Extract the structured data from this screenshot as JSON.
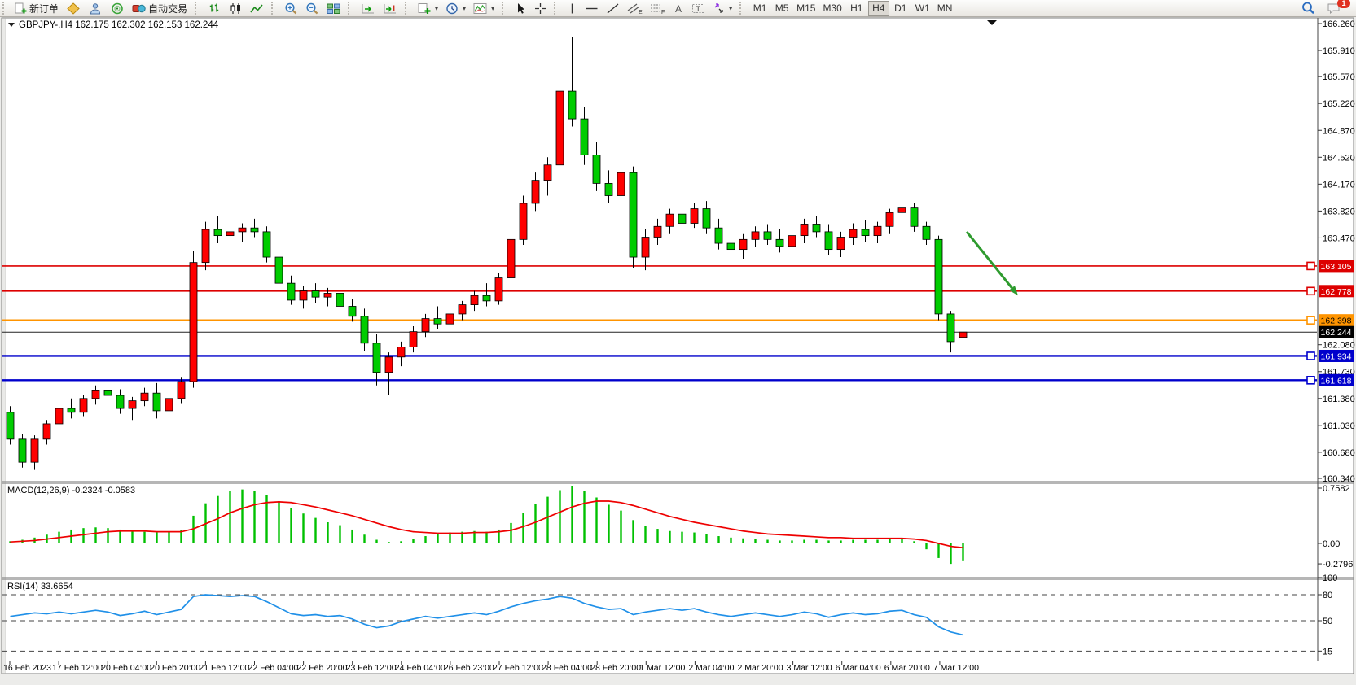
{
  "toolbar": {
    "new_order_label": "新订单",
    "autotrading_label": "自动交易",
    "timeframes": [
      "M1",
      "M5",
      "M15",
      "M30",
      "H1",
      "H4",
      "D1",
      "W1",
      "MN"
    ],
    "active_timeframe": "H4",
    "notification_count": "1"
  },
  "chart_data": {
    "type": "candlestick",
    "symbol": "GBPJPY-",
    "timeframe": "H4",
    "title": "GBPJPY-,H4",
    "ohlc_label": "162.175 162.302 162.153 162.244",
    "last": {
      "open": 162.175,
      "high": 162.302,
      "low": 162.153,
      "close": 162.244
    },
    "ylim": [
      160.34,
      166.26
    ],
    "y_ticks": [
      166.26,
      165.91,
      165.57,
      165.22,
      164.87,
      164.52,
      164.17,
      163.82,
      163.47,
      162.08,
      161.73,
      161.38,
      161.03,
      160.68,
      160.34
    ],
    "hlines": [
      {
        "price": 163.105,
        "color": "#dd0000",
        "label_bg": "#dd0000",
        "label_fg": "#ffffff",
        "width": 1.6,
        "marker": true
      },
      {
        "price": 162.778,
        "color": "#dd0000",
        "label_bg": "#dd0000",
        "label_fg": "#ffffff",
        "width": 1.6,
        "marker": true
      },
      {
        "price": 162.398,
        "color": "#ff9400",
        "label_bg": "#ff9400",
        "label_fg": "#000000",
        "width": 2.4,
        "marker": true
      },
      {
        "price": 161.934,
        "color": "#0000cc",
        "label_bg": "#0000cc",
        "label_fg": "#ffffff",
        "width": 2.4,
        "marker": true
      },
      {
        "price": 161.618,
        "color": "#0000cc",
        "label_bg": "#0000cc",
        "label_fg": "#ffffff",
        "width": 2.4,
        "marker": true
      }
    ],
    "current_price": {
      "price": 162.244,
      "color": "#222222",
      "label_bg": "#000000",
      "label_fg": "#ffffff",
      "width": 1,
      "marker": false
    },
    "up_color": "#ff0000",
    "down_color": "#00cc00",
    "candles": [
      [
        161.2,
        161.28,
        160.78,
        160.85
      ],
      [
        160.85,
        160.92,
        160.48,
        160.55
      ],
      [
        160.55,
        160.9,
        160.45,
        160.85
      ],
      [
        160.85,
        161.1,
        160.78,
        161.05
      ],
      [
        161.05,
        161.3,
        160.98,
        161.25
      ],
      [
        161.25,
        161.38,
        161.12,
        161.2
      ],
      [
        161.2,
        161.42,
        161.15,
        161.38
      ],
      [
        161.38,
        161.55,
        161.3,
        161.48
      ],
      [
        161.48,
        161.58,
        161.35,
        161.42
      ],
      [
        161.42,
        161.5,
        161.18,
        161.25
      ],
      [
        161.25,
        161.4,
        161.1,
        161.35
      ],
      [
        161.35,
        161.52,
        161.28,
        161.45
      ],
      [
        161.45,
        161.58,
        161.12,
        161.22
      ],
      [
        161.22,
        161.42,
        161.15,
        161.38
      ],
      [
        161.38,
        161.65,
        161.32,
        161.6
      ],
      [
        161.6,
        163.3,
        161.52,
        163.15
      ],
      [
        163.15,
        163.68,
        163.05,
        163.58
      ],
      [
        163.58,
        163.75,
        163.4,
        163.5
      ],
      [
        163.5,
        163.62,
        163.35,
        163.55
      ],
      [
        163.55,
        163.66,
        163.42,
        163.6
      ],
      [
        163.6,
        163.72,
        163.48,
        163.55
      ],
      [
        163.55,
        163.62,
        163.15,
        163.22
      ],
      [
        163.22,
        163.35,
        162.8,
        162.88
      ],
      [
        162.88,
        162.98,
        162.6,
        162.66
      ],
      [
        162.66,
        162.85,
        162.55,
        162.78
      ],
      [
        162.78,
        162.88,
        162.62,
        162.7
      ],
      [
        162.7,
        162.82,
        162.58,
        162.75
      ],
      [
        162.75,
        162.85,
        162.5,
        162.58
      ],
      [
        162.58,
        162.68,
        162.38,
        162.45
      ],
      [
        162.45,
        162.55,
        162.0,
        162.1
      ],
      [
        162.1,
        162.22,
        161.55,
        161.72
      ],
      [
        161.72,
        161.98,
        161.42,
        161.92
      ],
      [
        161.92,
        162.12,
        161.8,
        162.05
      ],
      [
        162.05,
        162.32,
        161.98,
        162.25
      ],
      [
        162.25,
        162.48,
        162.18,
        162.42
      ],
      [
        162.42,
        162.58,
        162.28,
        162.35
      ],
      [
        162.35,
        162.52,
        162.28,
        162.48
      ],
      [
        162.48,
        162.65,
        162.4,
        162.6
      ],
      [
        162.6,
        162.78,
        162.52,
        162.72
      ],
      [
        162.72,
        162.88,
        162.58,
        162.65
      ],
      [
        162.65,
        163.02,
        162.6,
        162.95
      ],
      [
        162.95,
        163.52,
        162.88,
        163.45
      ],
      [
        163.45,
        164.02,
        163.38,
        163.92
      ],
      [
        163.92,
        164.32,
        163.82,
        164.22
      ],
      [
        164.22,
        164.52,
        164.02,
        164.42
      ],
      [
        164.42,
        165.52,
        164.35,
        165.38
      ],
      [
        165.38,
        166.08,
        164.92,
        165.02
      ],
      [
        165.02,
        165.18,
        164.42,
        164.55
      ],
      [
        164.55,
        164.72,
        164.08,
        164.18
      ],
      [
        164.18,
        164.35,
        163.92,
        164.02
      ],
      [
        164.02,
        164.42,
        163.88,
        164.32
      ],
      [
        164.32,
        164.4,
        163.08,
        163.22
      ],
      [
        163.22,
        163.58,
        163.05,
        163.48
      ],
      [
        163.48,
        163.72,
        163.38,
        163.62
      ],
      [
        163.62,
        163.85,
        163.52,
        163.78
      ],
      [
        163.78,
        163.9,
        163.58,
        163.66
      ],
      [
        163.66,
        163.92,
        163.6,
        163.85
      ],
      [
        163.85,
        163.95,
        163.52,
        163.6
      ],
      [
        163.6,
        163.72,
        163.32,
        163.4
      ],
      [
        163.4,
        163.55,
        163.25,
        163.32
      ],
      [
        163.32,
        163.52,
        163.2,
        163.45
      ],
      [
        163.45,
        163.62,
        163.35,
        163.55
      ],
      [
        163.55,
        163.65,
        163.38,
        163.45
      ],
      [
        163.45,
        163.58,
        163.28,
        163.36
      ],
      [
        163.36,
        163.55,
        163.26,
        163.5
      ],
      [
        163.5,
        163.72,
        163.4,
        163.65
      ],
      [
        163.65,
        163.75,
        163.48,
        163.55
      ],
      [
        163.55,
        163.65,
        163.25,
        163.32
      ],
      [
        163.32,
        163.55,
        163.22,
        163.48
      ],
      [
        163.48,
        163.66,
        163.38,
        163.58
      ],
      [
        163.58,
        163.7,
        163.42,
        163.5
      ],
      [
        163.5,
        163.68,
        163.4,
        163.62
      ],
      [
        163.62,
        163.85,
        163.52,
        163.8
      ],
      [
        163.8,
        163.92,
        163.68,
        163.86
      ],
      [
        163.86,
        163.92,
        163.55,
        163.62
      ],
      [
        163.62,
        163.68,
        163.38,
        163.45
      ],
      [
        163.45,
        163.5,
        162.4,
        162.48
      ],
      [
        162.48,
        162.52,
        161.98,
        162.12
      ],
      [
        162.175,
        162.302,
        162.153,
        162.244
      ]
    ],
    "x_labels": [
      "16 Feb 2023",
      "17 Feb 12:00",
      "20 Feb 04:00",
      "20 Feb 20:00",
      "21 Feb 12:00",
      "22 Feb 04:00",
      "22 Feb 20:00",
      "23 Feb 12:00",
      "24 Feb 04:00",
      "26 Feb 23:00",
      "27 Feb 12:00",
      "28 Feb 04:00",
      "28 Feb 20:00",
      "1 Mar 12:00",
      "2 Mar 04:00",
      "2 Mar 20:00",
      "3 Mar 12:00",
      "6 Mar 04:00",
      "6 Mar 20:00",
      "7 Mar 12:00"
    ],
    "indicators": {
      "macd": {
        "label": "MACD(12,26,9) -0.2324 -0.0583",
        "axis": [
          {
            "v": 0.7582,
            "t": "0.7582"
          },
          {
            "v": 0,
            "t": "0.00"
          },
          {
            "v": -0.2796,
            "t": "-0.2796"
          }
        ],
        "histogram_color": "#00c000",
        "signal_color": "#ee0000",
        "histogram": [
          0.03,
          0.05,
          0.08,
          0.12,
          0.16,
          0.19,
          0.21,
          0.22,
          0.21,
          0.19,
          0.17,
          0.16,
          0.15,
          0.16,
          0.18,
          0.38,
          0.55,
          0.65,
          0.72,
          0.74,
          0.72,
          0.66,
          0.58,
          0.49,
          0.41,
          0.35,
          0.29,
          0.25,
          0.19,
          0.12,
          0.05,
          0.02,
          0.03,
          0.06,
          0.1,
          0.13,
          0.15,
          0.16,
          0.17,
          0.16,
          0.19,
          0.28,
          0.42,
          0.54,
          0.64,
          0.73,
          0.78,
          0.72,
          0.63,
          0.53,
          0.45,
          0.32,
          0.24,
          0.2,
          0.17,
          0.16,
          0.15,
          0.13,
          0.1,
          0.08,
          0.07,
          0.06,
          0.05,
          0.04,
          0.04,
          0.05,
          0.05,
          0.04,
          0.04,
          0.05,
          0.05,
          0.05,
          0.06,
          0.06,
          0.03,
          -0.08,
          -0.2,
          -0.28,
          -0.2324
        ],
        "signal": [
          0.02,
          0.03,
          0.04,
          0.06,
          0.08,
          0.1,
          0.12,
          0.14,
          0.16,
          0.17,
          0.17,
          0.17,
          0.16,
          0.16,
          0.16,
          0.2,
          0.27,
          0.34,
          0.42,
          0.48,
          0.53,
          0.56,
          0.57,
          0.56,
          0.53,
          0.5,
          0.46,
          0.42,
          0.38,
          0.33,
          0.28,
          0.23,
          0.19,
          0.16,
          0.15,
          0.14,
          0.14,
          0.14,
          0.15,
          0.15,
          0.16,
          0.18,
          0.23,
          0.29,
          0.36,
          0.43,
          0.5,
          0.55,
          0.58,
          0.58,
          0.56,
          0.52,
          0.47,
          0.42,
          0.37,
          0.33,
          0.29,
          0.26,
          0.23,
          0.2,
          0.17,
          0.15,
          0.13,
          0.12,
          0.11,
          0.1,
          0.09,
          0.08,
          0.08,
          0.07,
          0.07,
          0.07,
          0.07,
          0.07,
          0.06,
          0.04,
          0.0,
          -0.04,
          -0.0583
        ]
      },
      "rsi": {
        "label": "RSI(14) 33.6654",
        "axis": [
          {
            "v": 100,
            "t": "100"
          },
          {
            "v": 80,
            "t": "80"
          },
          {
            "v": 50,
            "t": "50"
          },
          {
            "v": 15,
            "t": "15"
          }
        ],
        "levels": [
          80,
          50,
          15
        ],
        "line_color": "#2090e8",
        "values": [
          55,
          57,
          59,
          58,
          60,
          58,
          60,
          62,
          60,
          56,
          58,
          61,
          57,
          60,
          63,
          78,
          80,
          79,
          78,
          79,
          78,
          72,
          65,
          58,
          56,
          57,
          55,
          56,
          52,
          46,
          42,
          44,
          49,
          52,
          55,
          53,
          55,
          57,
          59,
          57,
          61,
          66,
          70,
          73,
          75,
          78,
          76,
          70,
          66,
          63,
          64,
          57,
          60,
          62,
          64,
          62,
          64,
          60,
          57,
          55,
          57,
          59,
          57,
          55,
          57,
          60,
          58,
          54,
          57,
          59,
          57,
          58,
          61,
          62,
          57,
          54,
          43,
          37,
          33.67
        ]
      }
    },
    "annotation_arrow": {
      "bar_from": 78.6,
      "price_from": 163.55,
      "bar_to": 82.8,
      "price_to": 162.72,
      "color": "#2e9b2e"
    }
  }
}
